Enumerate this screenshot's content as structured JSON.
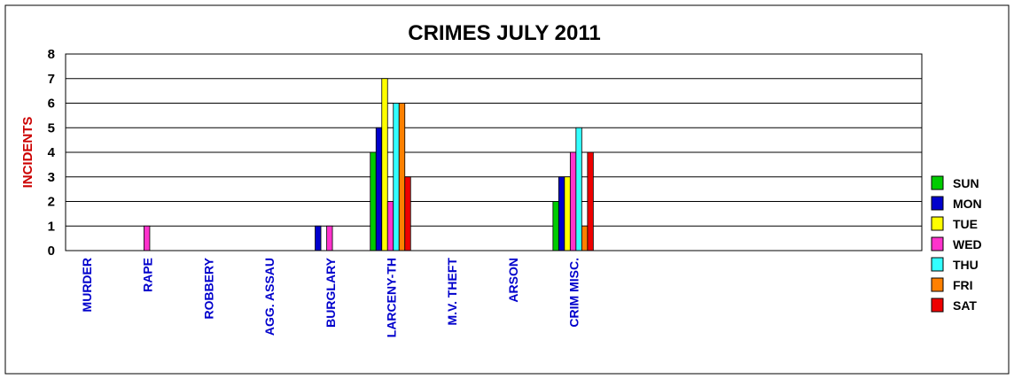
{
  "chart_data": {
    "type": "bar",
    "title": "CRIMES JULY 2011",
    "ylabel": "INCIDENTS",
    "xlabel": "",
    "ylim": [
      0,
      8
    ],
    "yticks": [
      "0",
      "1",
      "2",
      "3",
      "4",
      "5",
      "6",
      "7",
      "8"
    ],
    "grid": true,
    "legend_position": "right",
    "categories": [
      "MURDER",
      "RAPE",
      "ROBBERY",
      "AGG. ASSAU",
      "BURGLARY",
      "LARCENY-TH",
      "M.V. THEFT",
      "ARSON",
      "CRIM MISC."
    ],
    "series": [
      {
        "name": "SUN",
        "color": "#00cc00",
        "values": [
          0,
          0,
          0,
          0,
          0,
          4,
          0,
          0,
          2
        ]
      },
      {
        "name": "MON",
        "color": "#0000cc",
        "values": [
          0,
          0,
          0,
          0,
          1,
          5,
          0,
          0,
          3
        ]
      },
      {
        "name": "TUE",
        "color": "#ffff00",
        "values": [
          0,
          0,
          0,
          0,
          0,
          7,
          0,
          0,
          3
        ]
      },
      {
        "name": "WED",
        "color": "#ff33cc",
        "values": [
          0,
          1,
          0,
          0,
          1,
          2,
          0,
          0,
          4
        ]
      },
      {
        "name": "THU",
        "color": "#33ffff",
        "values": [
          0,
          0,
          0,
          0,
          0,
          6,
          0,
          0,
          5
        ]
      },
      {
        "name": "FRI",
        "color": "#ff8000",
        "values": [
          0,
          0,
          0,
          0,
          0,
          6,
          0,
          0,
          1
        ]
      },
      {
        "name": "SAT",
        "color": "#ee0000",
        "values": [
          0,
          0,
          0,
          0,
          0,
          3,
          0,
          0,
          4
        ]
      }
    ],
    "colors": {
      "category_label": "#0000cc",
      "axis_title": "#cc0000"
    }
  }
}
